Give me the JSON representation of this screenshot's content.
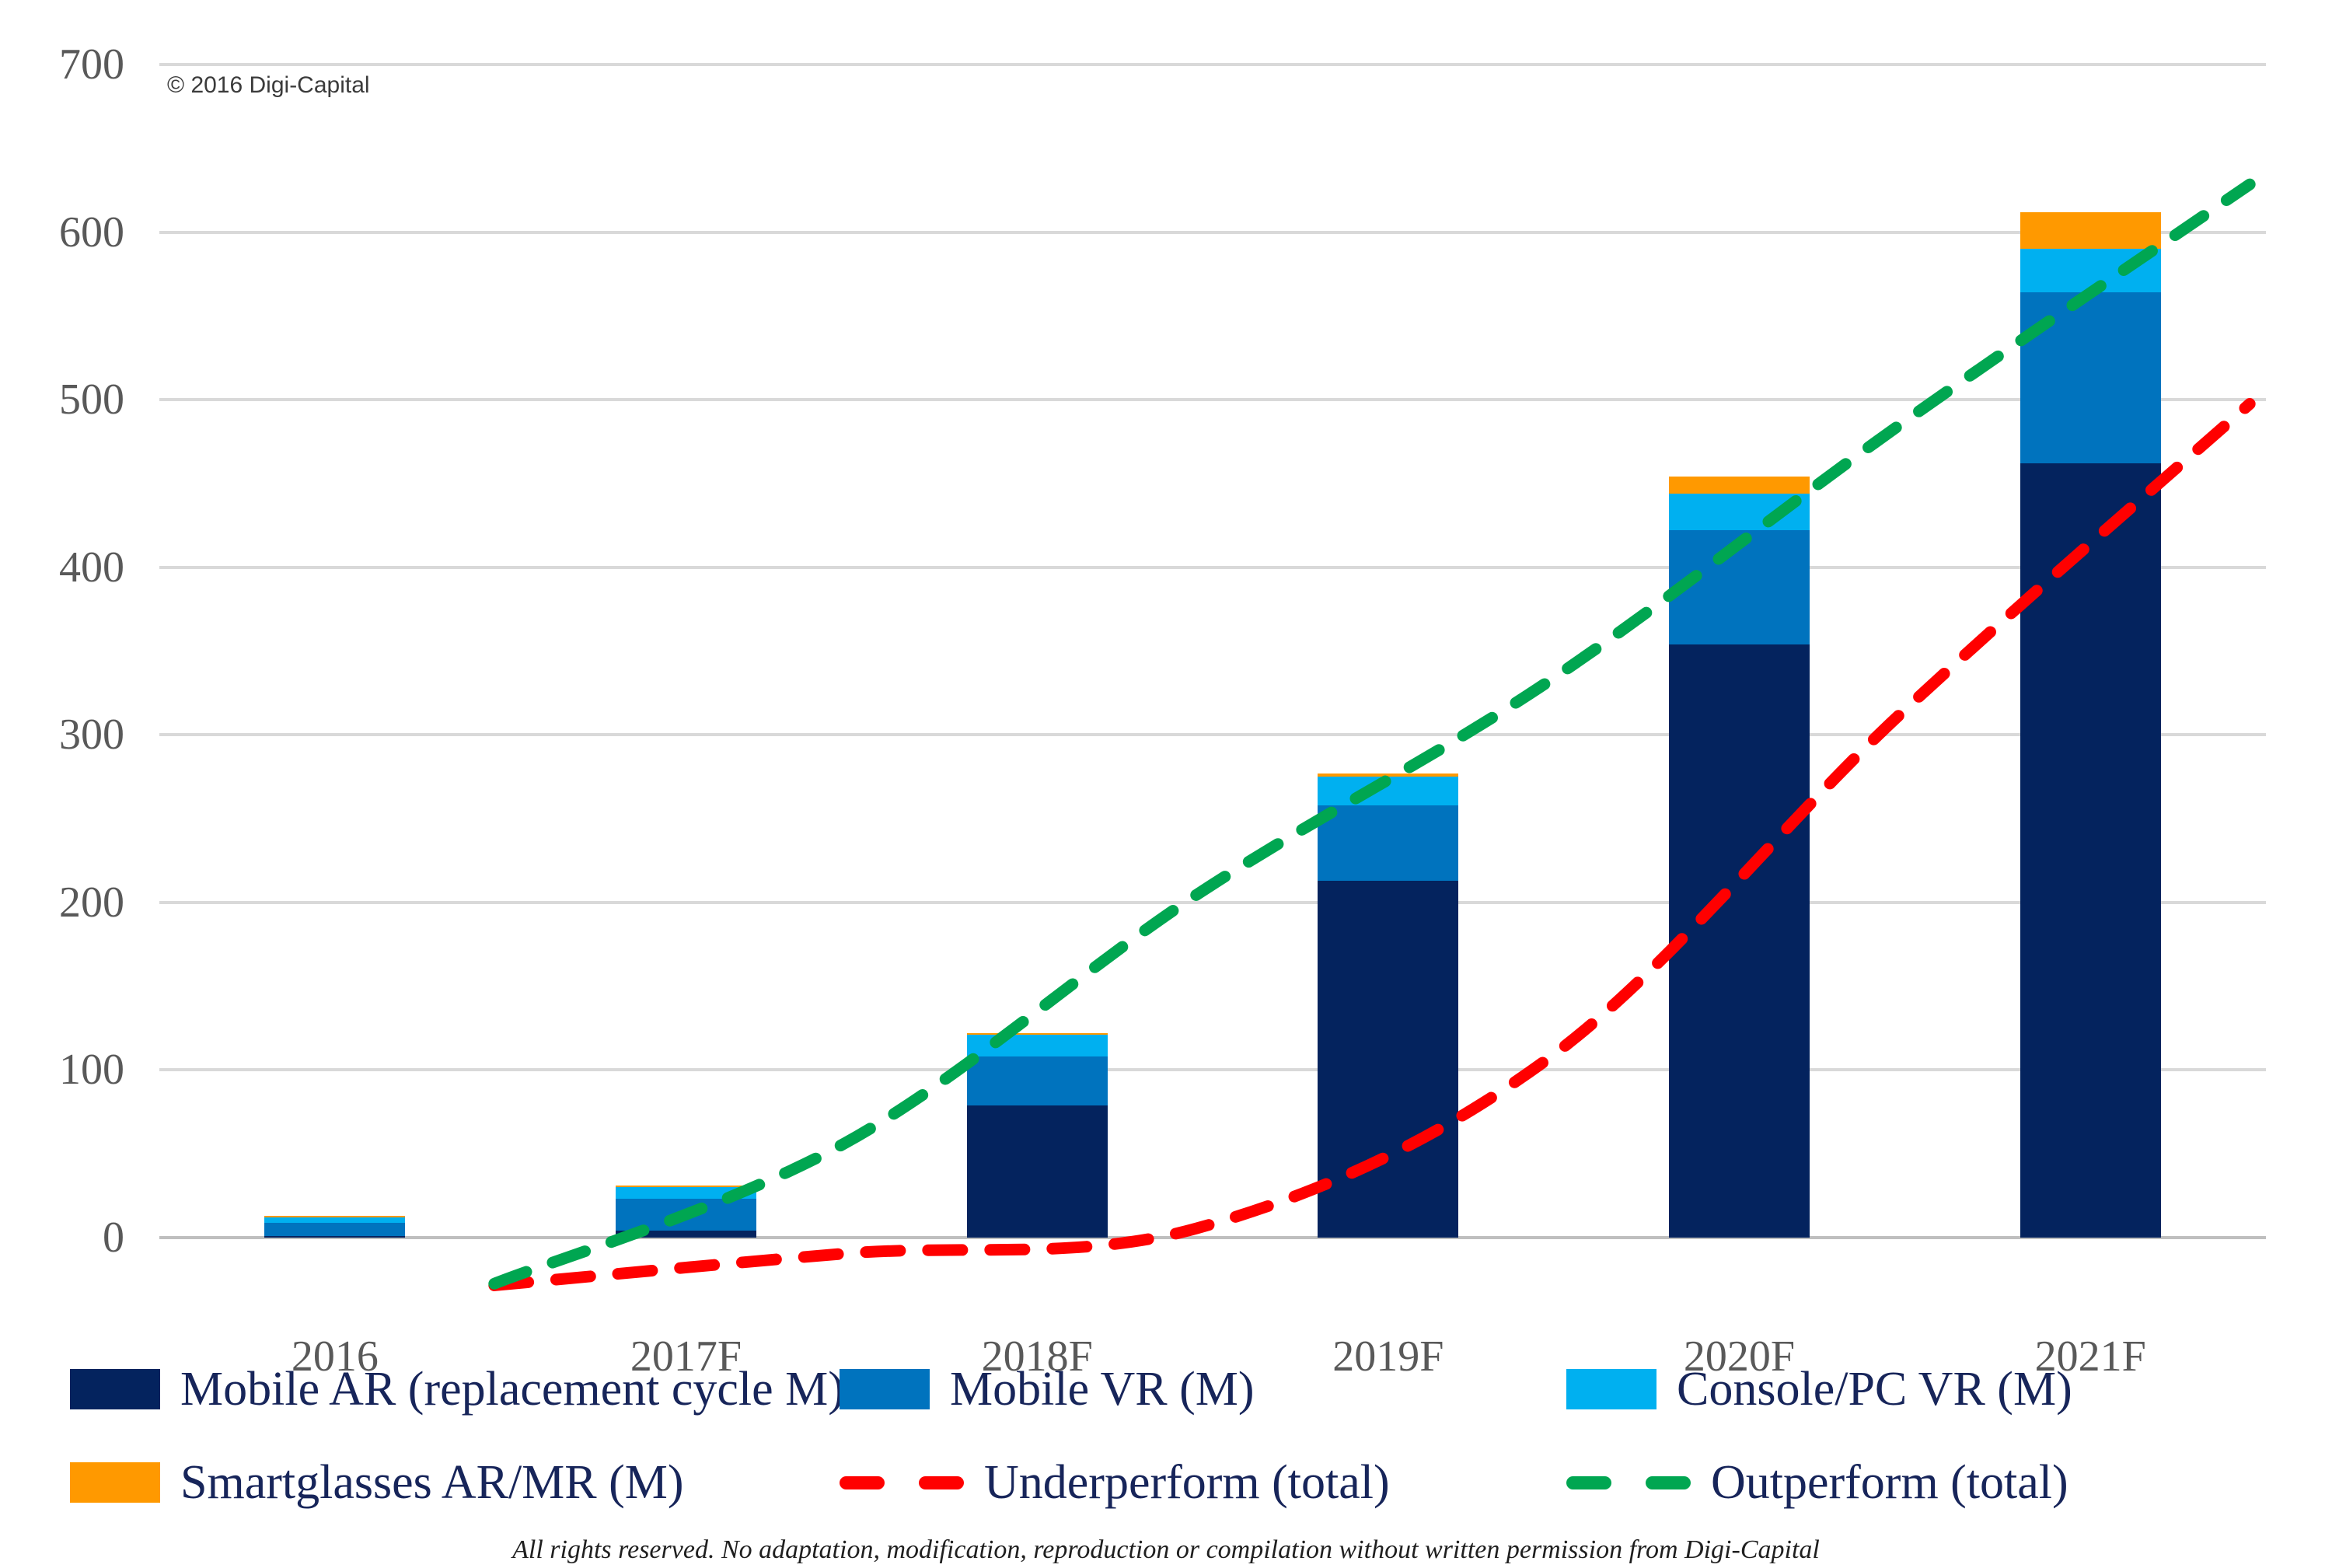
{
  "meta": {
    "copyright": "© 2016 Digi-Capital",
    "footer": "All rights reserved. No adaptation, modification, reproduction or compilation without written permission from Digi-Capital"
  },
  "axis": {
    "y_ticks": [
      700,
      600,
      500,
      400,
      300,
      200,
      100,
      0
    ],
    "x_labels": [
      "2016",
      "2017F",
      "2018F",
      "2019F",
      "2020F",
      "2021F"
    ]
  },
  "colors": {
    "grid": "#D9D9D9",
    "zero_line": "#BFBFBF",
    "axis_label": "#595959",
    "legend_text": "#17255A"
  },
  "chart_data": {
    "type": "bar",
    "subtype": "stacked-bars-with-dashed-lines",
    "categories": [
      "2016",
      "2017F",
      "2018F",
      "2019F",
      "2020F",
      "2021F"
    ],
    "series": [
      {
        "name": "Mobile AR (replacement cycle M)",
        "type": "bar",
        "color": "#04235E",
        "values": [
          1,
          4,
          79,
          213,
          354,
          462
        ]
      },
      {
        "name": "Mobile VR (M)",
        "type": "bar",
        "color": "#0073BE",
        "values": [
          8,
          19,
          29,
          45,
          68,
          102
        ]
      },
      {
        "name": "Console/PC VR (M)",
        "type": "bar",
        "color": "#00B0F0",
        "values": [
          3,
          7,
          13,
          17,
          22,
          26
        ]
      },
      {
        "name": "Smartglasses AR/MR (M)",
        "type": "bar",
        "color": "#FF9900",
        "values": [
          1,
          1,
          1,
          2,
          10,
          22
        ]
      },
      {
        "name": "Underperform (total)",
        "type": "line",
        "style": "dashed",
        "color": "#FF0000",
        "values": [
          10,
          29,
          44,
          145,
          350,
          536
        ]
      },
      {
        "name": "Outperform (total)",
        "type": "line",
        "style": "dashed",
        "color": "#00A651",
        "values": [
          11,
          95,
          243,
          370,
          523,
          667
        ]
      }
    ],
    "stacked_totals": [
      13,
      31,
      122,
      277,
      454,
      612
    ],
    "ylim": [
      0,
      700
    ],
    "grid": true,
    "legend_position": "bottom"
  }
}
